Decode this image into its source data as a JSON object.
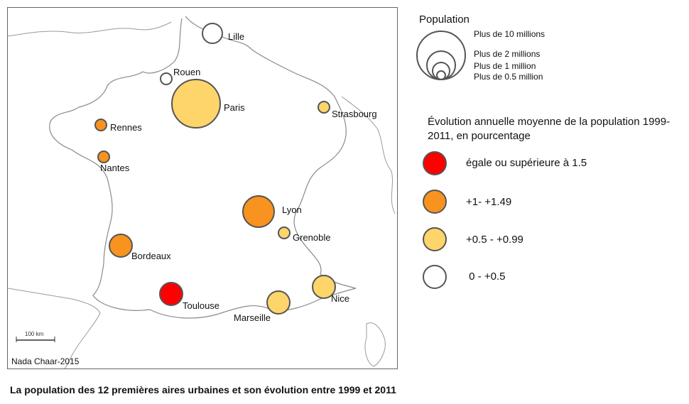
{
  "map": {
    "scale_label": "100 km",
    "credit": "Nada Chaar-2015",
    "caption": "La population des 12 premières aires urbaines et son évolution entre 1999 et 2011",
    "cities": [
      {
        "name": "Lille",
        "class": "0 - +0.5"
      },
      {
        "name": "Rouen",
        "class": "0 - +0.5"
      },
      {
        "name": "Paris",
        "class": "+0.5 - +0.99"
      },
      {
        "name": "Strasbourg",
        "class": "+0.5 - +0.99"
      },
      {
        "name": "Rennes",
        "class": "+1- +1.49"
      },
      {
        "name": "Nantes",
        "class": "+1- +1.49"
      },
      {
        "name": "Lyon",
        "class": "+1- +1.49"
      },
      {
        "name": "Grenoble",
        "class": "+0.5 - +0.99"
      },
      {
        "name": "Bordeaux",
        "class": "+1- +1.49"
      },
      {
        "name": "Toulouse",
        "class": "égale ou supérieure à 1.5"
      },
      {
        "name": "Marseille",
        "class": "+0.5 - +0.99"
      },
      {
        "name": "Nice",
        "class": "+0.5 - +0.99"
      }
    ]
  },
  "legend_population": {
    "title": "Population",
    "items": [
      "Plus de 10 millions",
      "Plus de 2 millions",
      "Plus de 1 million",
      "Plus de 0.5 million"
    ]
  },
  "legend_evolution": {
    "title": "Évolution annuelle moyenne de la population 1999-2011, en pourcentage",
    "items": [
      {
        "label": "égale ou supérieure à 1.5",
        "color": "#ff0000"
      },
      {
        "label": "+1- +1.49",
        "color": "#f7931e"
      },
      {
        "label": "+0.5 - +0.99",
        "color": "#fdd56a"
      },
      {
        "label": " 0 - +0.5",
        "color": "#ffffff"
      }
    ]
  }
}
